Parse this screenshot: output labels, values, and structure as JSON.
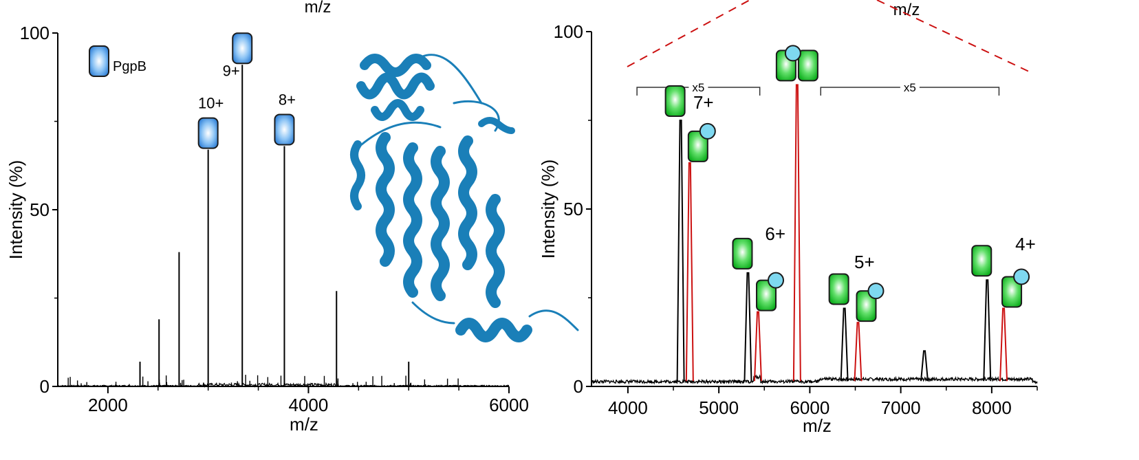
{
  "top_labels": [
    "m/z",
    "m/z"
  ],
  "chart_data": [
    {
      "type": "bar",
      "panel": "left",
      "xlabel": "m/z",
      "ylabel": "Intensity (%)",
      "xlim": [
        1500,
        6000
      ],
      "ylim": [
        0,
        100
      ],
      "xticks": [
        2000,
        4000,
        6000
      ],
      "yticks": [
        0,
        50,
        100
      ],
      "grid": false,
      "legend": {
        "position": "top-left",
        "entries": [
          {
            "label": "PgpB",
            "color": "#3a8fe0"
          }
        ]
      },
      "peaks": [
        {
          "mz": 3000,
          "intensity": 67,
          "label": "10+"
        },
        {
          "mz": 3340,
          "intensity": 91,
          "label": "9+"
        },
        {
          "mz": 3760,
          "intensity": 68,
          "label": "8+"
        },
        {
          "mz": 2320,
          "intensity": 7
        },
        {
          "mz": 2510,
          "intensity": 19
        },
        {
          "mz": 2710,
          "intensity": 38
        },
        {
          "mz": 4280,
          "intensity": 27
        },
        {
          "mz": 5000,
          "intensity": 7
        }
      ],
      "inset": {
        "kind": "protein-structure",
        "color": "#1a7fb8"
      }
    },
    {
      "type": "line",
      "panel": "right",
      "xlabel": "m/z",
      "ylabel": "Intensity (%)",
      "xlim": [
        3600,
        8500
      ],
      "ylim": [
        0,
        100
      ],
      "xticks": [
        4000,
        5000,
        6000,
        7000,
        8000
      ],
      "yticks": [
        0,
        50,
        100
      ],
      "grid": false,
      "zoom_labels": [
        {
          "text": "x5",
          "from": 4100,
          "to": 5450
        },
        {
          "text": "x5",
          "from": 6120,
          "to": 8080
        }
      ],
      "charge_labels": [
        {
          "text": "7+",
          "mz": 4710
        },
        {
          "text": "6+",
          "mz": 5500
        },
        {
          "text": "5+",
          "mz": 6480
        },
        {
          "text": "4+",
          "mz": 8250
        }
      ],
      "series": [
        {
          "color": "#000000",
          "peaks": [
            {
              "mz": 4580,
              "intensity": 75
            },
            {
              "mz": 5320,
              "intensity": 32
            },
            {
              "mz": 6380,
              "intensity": 22
            },
            {
              "mz": 7260,
              "intensity": 10
            },
            {
              "mz": 7950,
              "intensity": 30
            }
          ]
        },
        {
          "color": "#cc1111",
          "peaks": [
            {
              "mz": 4680,
              "intensity": 63
            },
            {
              "mz": 5430,
              "intensity": 21
            },
            {
              "mz": 5860,
              "intensity": 85
            },
            {
              "mz": 6530,
              "intensity": 18
            },
            {
              "mz": 8130,
              "intensity": 22
            }
          ]
        }
      ]
    }
  ]
}
